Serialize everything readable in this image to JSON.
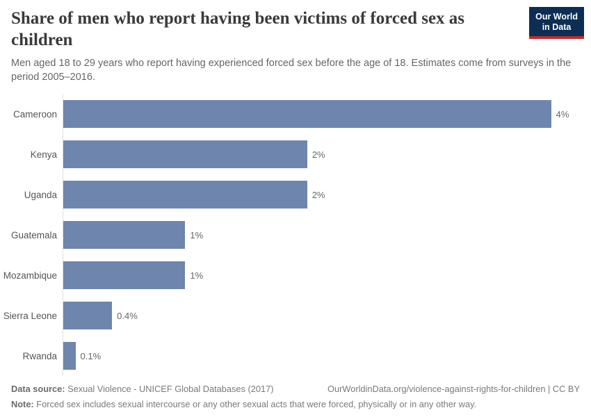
{
  "header": {
    "title": "Share of men who report having been victims of forced sex as children",
    "subtitle": "Men aged 18 to 29 years who report having experienced forced sex before the age of 18. Estimates come from surveys in the period 2005–2016.",
    "logo": {
      "line1": "Our World",
      "line2": "in Data"
    }
  },
  "chart_data": {
    "type": "bar",
    "orientation": "horizontal",
    "title": "Share of men who report having been victims of forced sex as children",
    "xlabel": "",
    "ylabel": "",
    "categories": [
      "Cameroon",
      "Kenya",
      "Uganda",
      "Guatemala",
      "Mozambique",
      "Sierra Leone",
      "Rwanda"
    ],
    "values": [
      4,
      2,
      2,
      1,
      1,
      0.4,
      0.1
    ],
    "value_labels": [
      "4%",
      "2%",
      "2%",
      "1%",
      "1%",
      "0.4%",
      "0.1%"
    ],
    "xlim": [
      0,
      4.27
    ],
    "grid": false,
    "legend": "none"
  },
  "footer": {
    "datasource_label": "Data source:",
    "datasource_text": "Sexual Violence - UNICEF Global Databases (2017)",
    "url_text": "OurWorldinData.org/violence-against-rights-for-children | CC BY",
    "note_label": "Note:",
    "note_text": "Forced sex includes sexual intercourse or any other sexual acts that were forced, physically or in any other way."
  },
  "colors": {
    "bar": "#6e85ad",
    "logo_bg": "#0d2e54",
    "logo_accent": "#c52929",
    "title_text": "#3a3a3a",
    "axis_line": "#dedede"
  }
}
